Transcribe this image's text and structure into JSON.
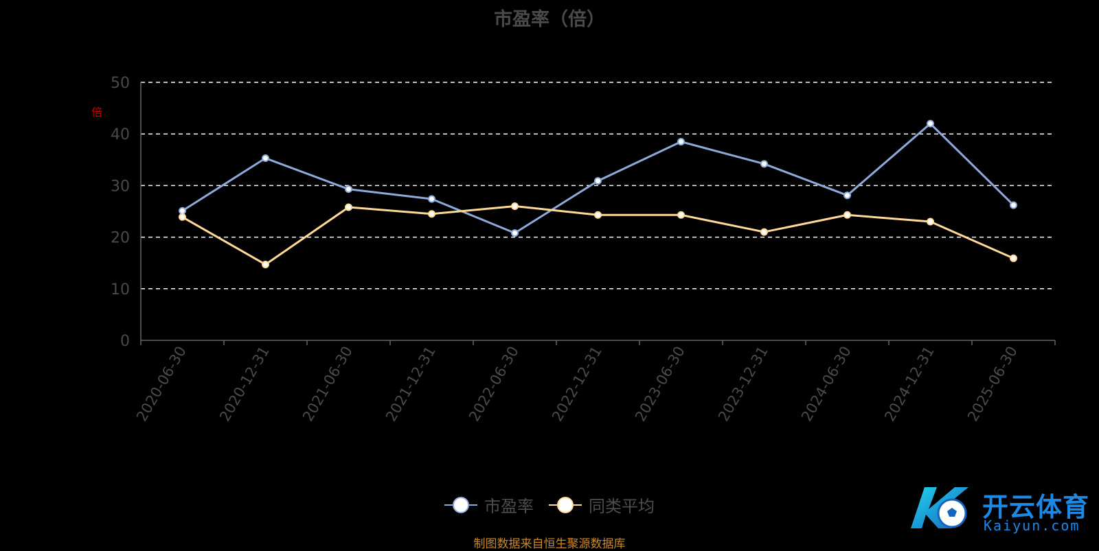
{
  "chart_data": {
    "type": "line",
    "title": "市盈率（倍）",
    "ylabel": "倍",
    "categories": [
      "2020-06-30",
      "2020-12-31",
      "2021-06-30",
      "2021-12-31",
      "2022-06-30",
      "2022-12-31",
      "2023-06-30",
      "2023-12-31",
      "2024-06-30",
      "2024-12-31",
      "2025-06-30"
    ],
    "ylim": [
      0,
      50
    ],
    "yticks": [
      0,
      10,
      20,
      30,
      40,
      50
    ],
    "grid": true,
    "legend_position": "bottom-center",
    "series": [
      {
        "name": "市盈率",
        "color": "#8eaadb",
        "values": [
          25.1,
          35.3,
          29.3,
          27.4,
          20.8,
          30.9,
          38.5,
          34.2,
          28.1,
          42.0,
          26.2
        ]
      },
      {
        "name": "同类平均",
        "color": "#ffd996",
        "values": [
          23.9,
          14.7,
          25.8,
          24.5,
          26.0,
          24.3,
          24.3,
          21.0,
          24.3,
          23.0,
          15.9
        ]
      }
    ]
  },
  "source_note": "制图数据来自恒生聚源数据库",
  "logo": {
    "name": "开云体育",
    "sub": "Kaiyun.com"
  },
  "colors": {
    "background": "#000000",
    "grid": "#ffffff",
    "axis": "#666666",
    "tick_text": "#4a4a4a"
  }
}
